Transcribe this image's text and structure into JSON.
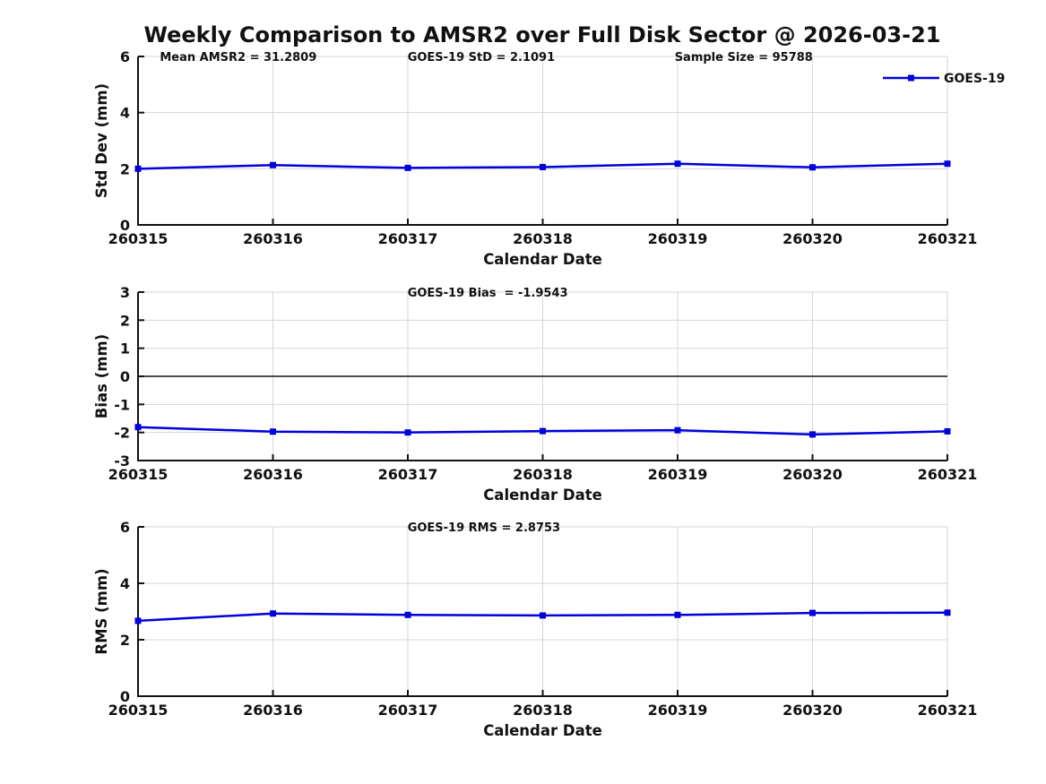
{
  "figure_title": "Weekly Comparison to AMSR2 over Full Disk Sector @ 2026-03-21",
  "legend": {
    "label": "GOES-19"
  },
  "colors": {
    "series": "#0000dd",
    "grid": "#d6d6d6",
    "zero_line": "#4d4d4d",
    "axis": "#111111"
  },
  "chart_data": [
    {
      "type": "line",
      "name": "std-dev",
      "title": "",
      "xlabel": "Calendar Date",
      "ylabel": "Std Dev (mm)",
      "categories": [
        "260315",
        "260316",
        "260317",
        "260318",
        "260319",
        "260320",
        "260321"
      ],
      "series": [
        {
          "name": "GOES-19",
          "values": [
            2.0,
            2.13,
            2.03,
            2.06,
            2.18,
            2.05,
            2.18
          ]
        }
      ],
      "ylim": [
        0,
        6
      ],
      "yticks": [
        0,
        2,
        4,
        6
      ],
      "grid": true,
      "zero_line": false,
      "legend_position": "top-right-inside",
      "annotations": [
        "Mean AMSR2 = 31.2809",
        "GOES-19 StD = 2.1091",
        "Sample Size = 95788"
      ]
    },
    {
      "type": "line",
      "name": "bias",
      "title": "",
      "xlabel": "Calendar Date",
      "ylabel": "Bias (mm)",
      "categories": [
        "260315",
        "260316",
        "260317",
        "260318",
        "260319",
        "260320",
        "260321"
      ],
      "series": [
        {
          "name": "GOES-19",
          "values": [
            -1.81,
            -1.97,
            -2.0,
            -1.95,
            -1.92,
            -2.07,
            -1.96
          ]
        }
      ],
      "ylim": [
        -3,
        3
      ],
      "yticks": [
        -3,
        -2,
        -1,
        0,
        1,
        2,
        3
      ],
      "grid": true,
      "zero_line": true,
      "annotations": [
        "GOES-19 Bias  = -1.9543"
      ]
    },
    {
      "type": "line",
      "name": "rms",
      "title": "",
      "xlabel": "Calendar Date",
      "ylabel": "RMS (mm)",
      "categories": [
        "260315",
        "260316",
        "260317",
        "260318",
        "260319",
        "260320",
        "260321"
      ],
      "series": [
        {
          "name": "GOES-19",
          "values": [
            2.67,
            2.93,
            2.88,
            2.86,
            2.88,
            2.95,
            2.96
          ]
        }
      ],
      "ylim": [
        0,
        6
      ],
      "yticks": [
        0,
        2,
        4,
        6
      ],
      "grid": true,
      "zero_line": false,
      "annotations": [
        "GOES-19 RMS = 2.8753"
      ]
    }
  ]
}
